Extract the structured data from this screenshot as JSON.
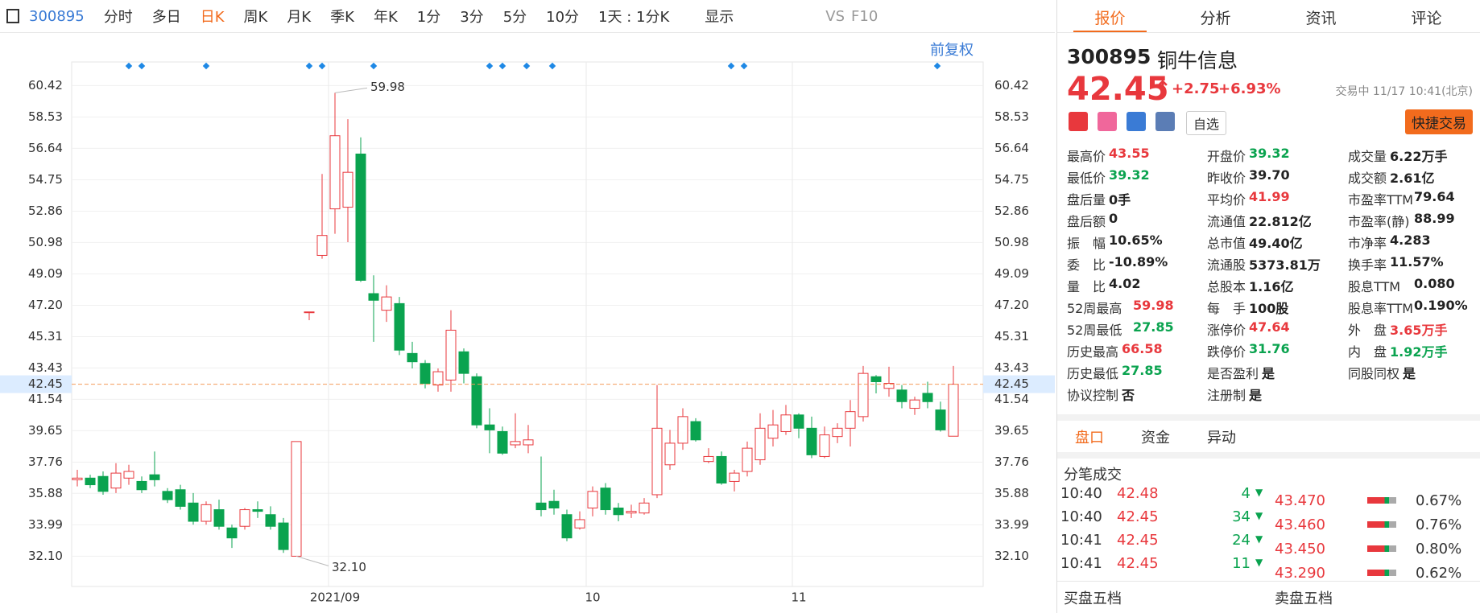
{
  "toolbar": {
    "code": "300895",
    "tabs": [
      "分时",
      "多日",
      "日K",
      "周K",
      "月K",
      "季K",
      "年K",
      "1分",
      "3分",
      "5分",
      "10分"
    ],
    "active": "日K",
    "period": "1天 : 1分K",
    "display": "显示",
    "vs": "VS",
    "f10": "F10",
    "adjust": "前复权"
  },
  "chart_data": {
    "type": "candlestick",
    "up_color": "#e8383d",
    "down_color": "#0aa34f",
    "categories": [
      null,
      null,
      null,
      null,
      null,
      null,
      null,
      null,
      null,
      null,
      null,
      null,
      null,
      null,
      null,
      null,
      null,
      null,
      null,
      null,
      "2021/09",
      null,
      null,
      null,
      null,
      null,
      null,
      null,
      null,
      null,
      null,
      null,
      null,
      null,
      null,
      null,
      null,
      null,
      null,
      null,
      "10",
      null,
      null,
      null,
      null,
      null,
      null,
      null,
      null,
      null,
      null,
      null,
      null,
      null,
      null,
      null,
      "11",
      null,
      null,
      null,
      null,
      null,
      null,
      null,
      null,
      null,
      null,
      null,
      null
    ],
    "open": [
      36.7,
      36.8,
      36.9,
      36.2,
      36.8,
      36.6,
      37.0,
      36.0,
      36.1,
      35.3,
      34.2,
      34.9,
      33.8,
      33.9,
      34.9,
      34.6,
      34.1,
      32.1,
      46.8,
      50.2,
      53.0,
      53.1,
      56.3,
      47.9,
      46.9,
      47.3,
      44.3,
      43.7,
      42.4,
      42.7,
      44.4,
      42.9,
      40.0,
      39.6,
      38.8,
      38.8,
      35.3,
      35.4,
      34.6,
      33.8,
      35.0,
      36.2,
      35.0,
      34.7,
      34.7,
      35.8,
      37.6,
      38.9,
      40.2,
      37.8,
      38.1,
      36.6,
      37.2,
      37.9,
      39.2,
      39.6,
      40.6,
      39.8,
      38.1,
      39.3,
      39.8,
      40.5,
      42.9,
      42.2,
      42.1,
      41.0,
      41.9,
      40.9,
      39.32
    ],
    "high": [
      37.3,
      37.0,
      37.2,
      37.7,
      37.6,
      36.9,
      38.4,
      36.2,
      36.4,
      35.9,
      35.4,
      35.5,
      34.0,
      35.0,
      35.4,
      35.1,
      34.4,
      39.0,
      46.8,
      55.1,
      59.98,
      58.4,
      57.3,
      49.0,
      48.4,
      47.7,
      45.0,
      43.9,
      43.4,
      46.9,
      44.6,
      43.1,
      41.0,
      39.9,
      40.7,
      40.0,
      38.1,
      36.1,
      34.9,
      34.8,
      36.3,
      36.5,
      35.3,
      35.2,
      35.6,
      42.4,
      39.7,
      41.0,
      40.4,
      38.6,
      38.4,
      37.3,
      39.0,
      40.7,
      40.9,
      41.2,
      40.7,
      40.5,
      39.9,
      40.1,
      41.5,
      43.55,
      43.0,
      43.5,
      42.4,
      41.7,
      42.6,
      41.4,
      43.55
    ],
    "low": [
      36.3,
      36.2,
      35.8,
      35.9,
      36.4,
      35.9,
      36.3,
      35.3,
      34.9,
      34.0,
      34.0,
      33.7,
      32.6,
      33.7,
      34.4,
      33.7,
      32.3,
      32.1,
      46.3,
      50.0,
      51.5,
      51.0,
      48.6,
      45.0,
      46.2,
      44.2,
      43.4,
      42.2,
      42.0,
      42.0,
      42.5,
      39.8,
      38.3,
      38.2,
      38.6,
      38.3,
      34.5,
      34.6,
      33.0,
      33.7,
      34.5,
      34.6,
      34.2,
      34.4,
      34.6,
      35.6,
      37.3,
      38.5,
      39.0,
      37.7,
      36.4,
      36.0,
      36.9,
      37.6,
      38.7,
      39.4,
      39.2,
      38.0,
      38.0,
      38.9,
      38.7,
      40.2,
      41.9,
      41.7,
      41.0,
      40.6,
      41.0,
      39.6,
      39.32
    ],
    "close": [
      36.8,
      36.4,
      36.0,
      37.1,
      37.2,
      36.1,
      36.7,
      35.5,
      35.1,
      34.2,
      35.2,
      33.9,
      33.2,
      34.9,
      34.8,
      33.9,
      32.5,
      39.0,
      46.8,
      51.4,
      57.4,
      55.2,
      48.7,
      47.5,
      47.7,
      44.5,
      43.8,
      42.5,
      43.2,
      45.7,
      43.1,
      40.0,
      39.7,
      38.3,
      39.0,
      39.1,
      34.9,
      35.0,
      33.2,
      34.3,
      36.0,
      34.9,
      34.6,
      34.8,
      35.3,
      39.8,
      38.9,
      40.5,
      39.1,
      38.1,
      36.5,
      37.1,
      38.6,
      39.8,
      40.0,
      40.6,
      39.8,
      38.2,
      39.4,
      39.8,
      40.8,
      43.1,
      42.6,
      42.5,
      41.4,
      41.5,
      41.4,
      39.7,
      42.45
    ],
    "ylim": [
      30.28,
      61.84
    ],
    "yticks": [
      60.42,
      58.53,
      56.64,
      54.75,
      52.86,
      50.98,
      49.09,
      {
        "value": 47.2,
        "label": "47.20"
      },
      45.31,
      43.43,
      41.54,
      39.65,
      37.76,
      35.88,
      33.99,
      {
        "value": 32.1,
        "label": "32.10"
      }
    ],
    "last": 42.45,
    "last_color": "#f39c5a",
    "max_label": "59.98",
    "min_label": "32.10",
    "grid": true
  },
  "panel": {
    "tabs": [
      "报价",
      "分析",
      "资讯",
      "评论"
    ],
    "active": "报价",
    "code": "300895",
    "name": "铜牛信息",
    "price": "42.45",
    "change": "+2.75",
    "pct": "+6.93%",
    "status": "交易中 11/17 10:41(北京)",
    "watch": "自选",
    "trade": "快捷交易",
    "quote_columns": [
      [
        {
          "label": "最高价",
          "value": "43.55",
          "color": "#e8383d"
        },
        {
          "label": "最低价",
          "value": "39.32",
          "color": "#0aa34f"
        },
        {
          "label": "盘后量",
          "value": "0手",
          "color": "#222"
        },
        {
          "label": "盘后额",
          "value": "0",
          "color": "#222"
        },
        {
          "label": "振　幅",
          "value": "10.65%",
          "color": "#222"
        },
        {
          "label": "委　比",
          "value": "-10.89%",
          "color": "#222"
        },
        {
          "label": "量　比",
          "value": "4.02",
          "color": "#222"
        },
        {
          "label": "52周最高",
          "value": "59.98",
          "color": "#e8383d"
        },
        {
          "label": "52周最低",
          "value": "27.85",
          "color": "#0aa34f"
        },
        {
          "label": "历史最高",
          "value": "66.58",
          "color": "#e8383d"
        },
        {
          "label": "历史最低",
          "value": "27.85",
          "color": "#0aa34f"
        },
        {
          "label": "协议控制",
          "value": "否",
          "color": "#222"
        }
      ],
      [
        {
          "label": "开盘价",
          "value": "39.32",
          "color": "#0aa34f"
        },
        {
          "label": "昨收价",
          "value": "39.70",
          "color": "#222"
        },
        {
          "label": "平均价",
          "value": "41.99",
          "color": "#e8383d"
        },
        {
          "label": "流通值",
          "value": "22.812亿",
          "color": "#222"
        },
        {
          "label": "总市值",
          "value": "49.40亿",
          "color": "#222"
        },
        {
          "label": "流通股",
          "value": "5373.81万",
          "color": "#222"
        },
        {
          "label": "总股本",
          "value": "1.16亿",
          "color": "#222"
        },
        {
          "label": "每　手",
          "value": "100股",
          "color": "#222"
        },
        {
          "label": "涨停价",
          "value": "47.64",
          "color": "#e8383d"
        },
        {
          "label": "跌停价",
          "value": "31.76",
          "color": "#0aa34f"
        },
        {
          "label": "是否盈利",
          "value": "是",
          "color": "#222"
        },
        {
          "label": "注册制",
          "value": "是",
          "color": "#222"
        }
      ],
      [
        {
          "label": "成交量",
          "value": "6.22万手",
          "color": "#222"
        },
        {
          "label": "成交额",
          "value": "2.61亿",
          "color": "#222"
        },
        {
          "label": "市盈率TTM",
          "value": "79.64",
          "color": "#222"
        },
        {
          "label": "市盈率(静)",
          "value": "88.99",
          "color": "#222"
        },
        {
          "label": "市净率",
          "value": "4.283",
          "color": "#222"
        },
        {
          "label": "换手率",
          "value": "11.57%",
          "color": "#222"
        },
        {
          "label": "股息TTM",
          "value": "0.080",
          "color": "#222"
        },
        {
          "label": "股息率TTM",
          "value": "0.190%",
          "color": "#222"
        },
        {
          "label": "外　盘",
          "value": "3.65万手",
          "color": "#e8383d"
        },
        {
          "label": "内　盘",
          "value": "1.92万手",
          "color": "#0aa34f"
        },
        {
          "label": "同股同权",
          "value": "是",
          "color": "#222"
        }
      ]
    ],
    "sub_tabs": [
      "盘口",
      "资金",
      "异动"
    ],
    "sub_active": "盘口",
    "trades_title": "分笔成交",
    "trades": [
      {
        "time": "10:40",
        "price": "42.48",
        "volume": "4"
      },
      {
        "time": "10:40",
        "price": "42.45",
        "volume": "34"
      },
      {
        "time": "10:41",
        "price": "42.45",
        "volume": "24"
      },
      {
        "time": "10:41",
        "price": "42.45",
        "volume": "11"
      }
    ],
    "levels": [
      {
        "price": "43.470",
        "pct": "0.67%"
      },
      {
        "price": "43.460",
        "pct": "0.76%"
      },
      {
        "price": "43.450",
        "pct": "0.80%"
      },
      {
        "price": "43.290",
        "pct": "0.62%"
      }
    ],
    "buy_title": "买盘五档",
    "sell_title": "卖盘五档"
  }
}
